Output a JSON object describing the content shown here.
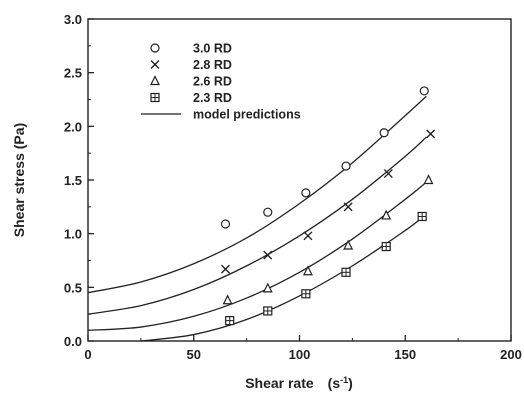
{
  "chart_data": {
    "type": "scatter",
    "xlabel": "Shear rate",
    "xlabel_unit_base": "(s",
    "xlabel_unit_exp": "-1",
    "xlabel_unit_close": ")",
    "ylabel": "Shear stress  (Pa)",
    "xlim": [
      0,
      200
    ],
    "ylim": [
      0,
      3.0
    ],
    "x_ticks": [
      "0",
      "50",
      "100",
      "150",
      "200"
    ],
    "y_ticks": [
      "0.0",
      "0.5",
      "1.0",
      "1.5",
      "2.0",
      "2.5",
      "3.0"
    ],
    "grid": false,
    "legend_position": "top-left",
    "series": [
      {
        "name": "3.0 RD",
        "marker": "circle",
        "x": [
          65,
          85,
          103,
          122,
          140,
          159
        ],
        "y": [
          1.09,
          1.2,
          1.38,
          1.63,
          1.94,
          2.33
        ],
        "model_curve": {
          "x": [
            0,
            25,
            50,
            75,
            100,
            125,
            150,
            160
          ],
          "y": [
            0.45,
            0.55,
            0.72,
            0.96,
            1.28,
            1.66,
            2.1,
            2.28
          ]
        }
      },
      {
        "name": "2.8 RD",
        "marker": "x",
        "x": [
          65,
          85,
          104,
          123,
          142,
          162
        ],
        "y": [
          0.67,
          0.8,
          0.98,
          1.25,
          1.56,
          1.93
        ],
        "model_curve": {
          "x": [
            0,
            25,
            50,
            75,
            100,
            125,
            150,
            160
          ],
          "y": [
            0.25,
            0.33,
            0.48,
            0.7,
            0.98,
            1.32,
            1.72,
            1.9
          ]
        }
      },
      {
        "name": "2.6 RD",
        "marker": "triangle",
        "x": [
          66,
          85,
          104,
          123,
          141,
          161
        ],
        "y": [
          0.38,
          0.49,
          0.65,
          0.89,
          1.17,
          1.5
        ],
        "model_curve": {
          "x": [
            0,
            25,
            50,
            75,
            100,
            125,
            150,
            160
          ],
          "y": [
            0.1,
            0.13,
            0.23,
            0.4,
            0.64,
            0.95,
            1.32,
            1.48
          ]
        }
      },
      {
        "name": "2.3 RD",
        "marker": "boxed-plus",
        "x": [
          67,
          85,
          103,
          122,
          141,
          158
        ],
        "y": [
          0.19,
          0.28,
          0.44,
          0.64,
          0.88,
          1.16
        ],
        "model_curve": {
          "x": [
            25,
            50,
            75,
            100,
            125,
            150,
            158
          ],
          "y": [
            0.0,
            0.06,
            0.2,
            0.42,
            0.7,
            1.03,
            1.15
          ]
        }
      }
    ],
    "line_legend": "model predictions"
  }
}
